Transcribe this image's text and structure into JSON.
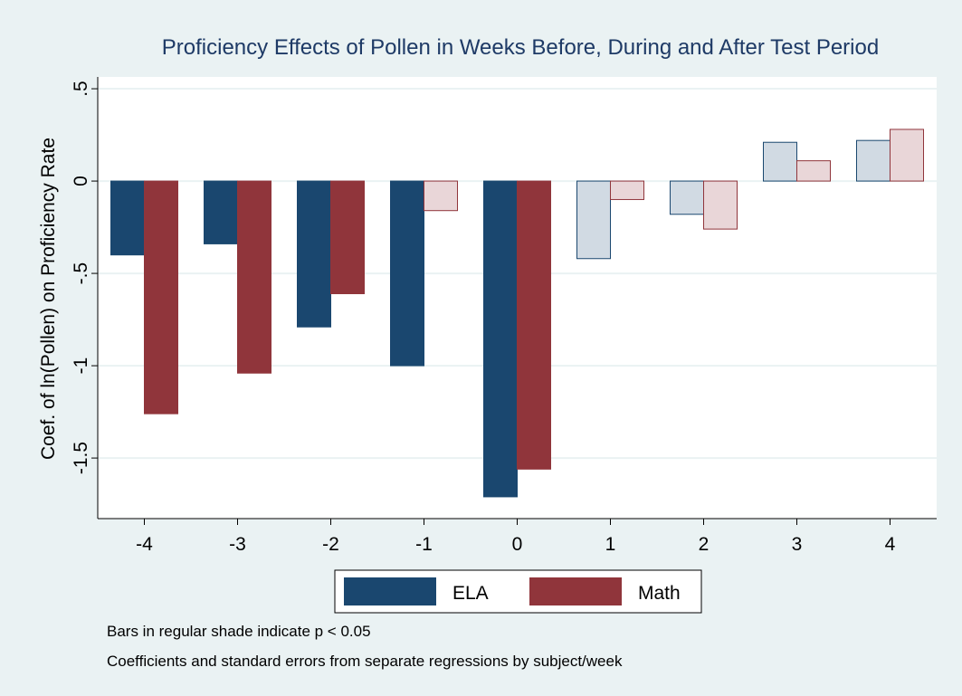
{
  "chart_data": {
    "type": "bar",
    "title": "Proficiency Effects of Pollen in Weeks Before, During and After Test Period",
    "y_label": "Coef. of ln(Pollen) on Proficiency Rate",
    "categories": [
      "-4",
      "-3",
      "-2",
      "-1",
      "0",
      "1",
      "2",
      "3",
      "4"
    ],
    "series": [
      {
        "name": "ELA",
        "color": "#1a476f",
        "edge": "#1a476f",
        "colors": [
          "#1a476f",
          "#1a476f",
          "#1a476f",
          "#1a476f",
          "#1a476f",
          "#d1dae3",
          "#d1dae3",
          "#d1dae3",
          "#d1dae3"
        ],
        "values": [
          -0.4,
          -0.34,
          -0.79,
          -1.0,
          -1.71,
          -0.42,
          -0.18,
          0.21,
          0.22
        ]
      },
      {
        "name": "Math",
        "color": "#90353b",
        "edge": "#90353b",
        "colors": [
          "#90353b",
          "#90353b",
          "#90353b",
          "#e9d6d8",
          "#90353b",
          "#e9d6d8",
          "#e9d6d8",
          "#e9d6d8",
          "#e9d6d8"
        ],
        "values": [
          -1.26,
          -1.04,
          -0.61,
          -0.16,
          -1.56,
          -0.1,
          -0.26,
          0.11,
          0.28
        ]
      }
    ],
    "ylim": [
      -1.828,
      0.564
    ],
    "yticks": [
      {
        "value": 0.5,
        "label": ".5"
      },
      0,
      {
        "value": -0.5,
        "label": "-.5"
      },
      -1,
      -1.5
    ],
    "grid": true,
    "notes": [
      "Bars in regular shade indicate p < 0.05",
      "Coefficients and standard errors from separate regressions by subject/week"
    ]
  }
}
